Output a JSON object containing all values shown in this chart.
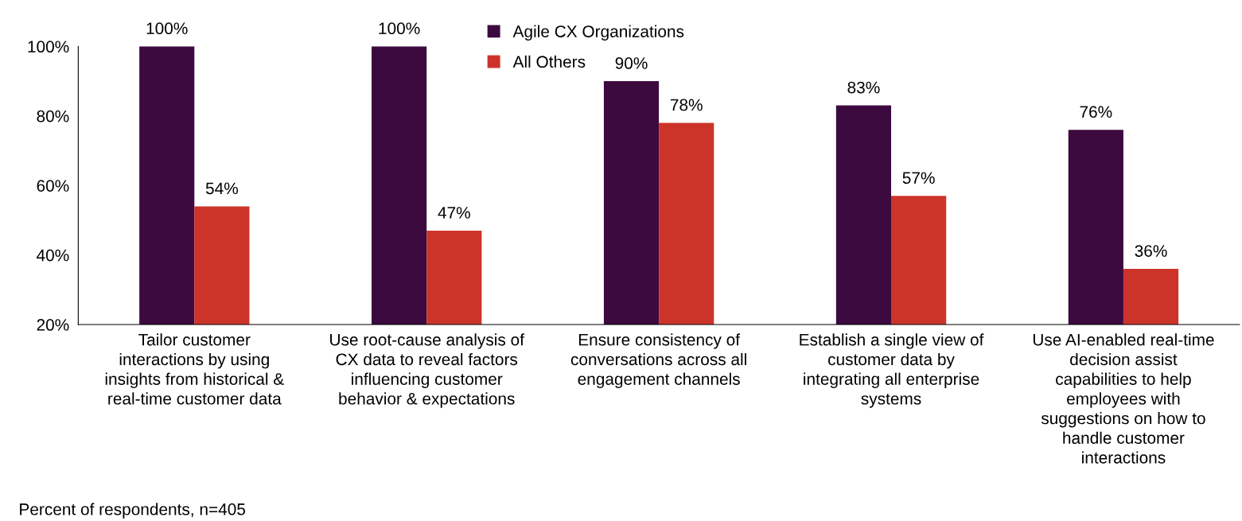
{
  "chart_data": {
    "type": "bar",
    "categories": [
      "Tailor customer\ninteractions by using\ninsights from historical &\nreal-time customer data",
      "Use root-cause analysis of\nCX data to reveal factors\ninfluencing customer\nbehavior & expectations",
      "Ensure consistency of\nconversations across all\nengagement channels",
      "Establish a single view of\ncustomer data by\nintegrating all enterprise\nsystems",
      "Use AI-enabled real-time\ndecision assist\ncapabilities to help\nemployees with\nsuggestions on how to\nhandle customer\ninteractions"
    ],
    "series": [
      {
        "name": "Agile CX Organizations",
        "color": "#3d0a40",
        "values": [
          100,
          100,
          90,
          83,
          76
        ],
        "value_labels": [
          "100%",
          "100%",
          "90%",
          "83%",
          "76%"
        ]
      },
      {
        "name": "All Others",
        "color": "#cc3429",
        "values": [
          54,
          47,
          78,
          57,
          36
        ],
        "value_labels": [
          "54%",
          "47%",
          "78%",
          "57%",
          "36%"
        ]
      }
    ],
    "ylim": [
      20,
      100
    ],
    "yticks": [
      {
        "value": 20,
        "label": "20%"
      },
      {
        "value": 40,
        "label": "40%"
      },
      {
        "value": 60,
        "label": "60%"
      },
      {
        "value": 80,
        "label": "80%"
      },
      {
        "value": 100,
        "label": "100%"
      }
    ],
    "grid": false,
    "legend": "top",
    "annotations": [
      "Percent of respondents, n=405"
    ]
  }
}
